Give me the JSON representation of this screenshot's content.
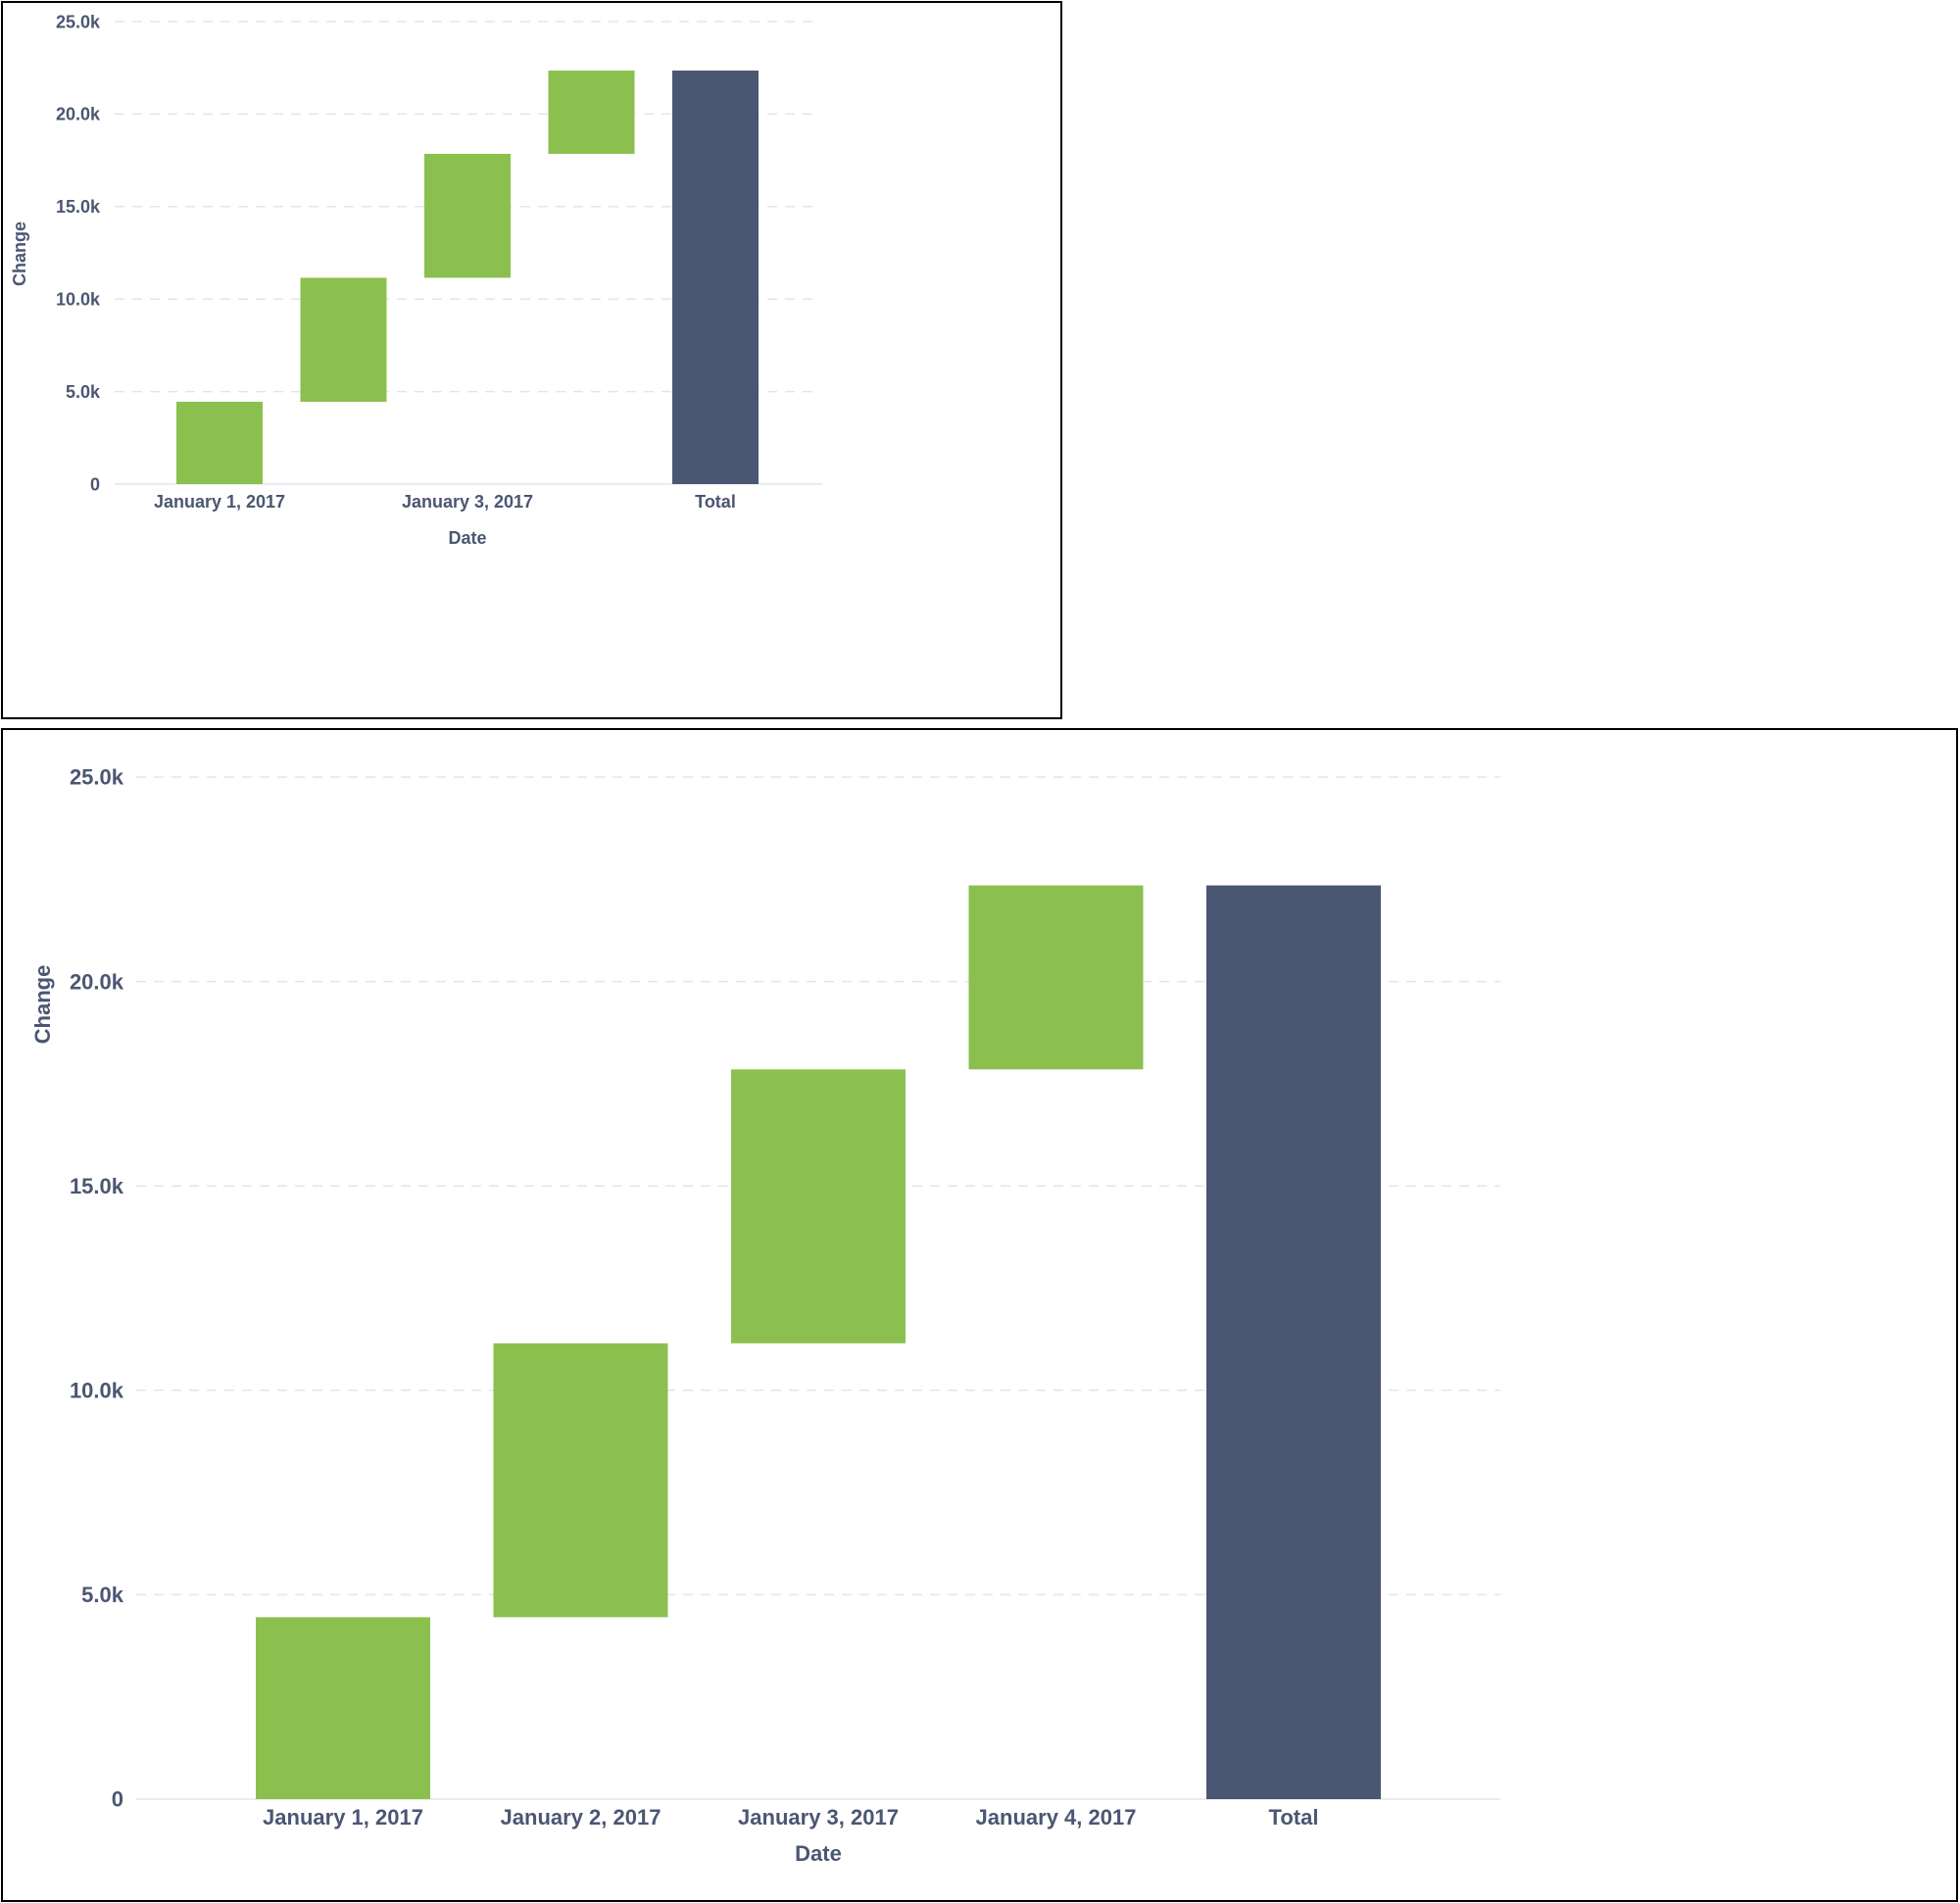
{
  "chart_data": [
    {
      "type": "bar",
      "variant": "waterfall",
      "xlabel": "Date",
      "ylabel": "Change",
      "ylim": [
        0,
        25000
      ],
      "yticks": [
        "0",
        "5.0k",
        "10.0k",
        "15.0k",
        "20.0k",
        "25.0k"
      ],
      "ytick_values": [
        0,
        5000,
        10000,
        15000,
        20000,
        25000
      ],
      "grid": true,
      "categories": [
        "January 1, 2017",
        "January 2, 2017",
        "January 3, 2017",
        "January 4, 2017",
        "Total"
      ],
      "shown_x_tick_labels": [
        "January 1, 2017",
        "January 3, 2017",
        "Total"
      ],
      "values": [
        4450,
        6700,
        6700,
        4500,
        22350
      ],
      "colors": {
        "increase": "#8bc04f",
        "total": "#4b5672"
      }
    },
    {
      "type": "bar",
      "variant": "waterfall",
      "xlabel": "Date",
      "ylabel": "Change",
      "ylim": [
        0,
        25000
      ],
      "yticks": [
        "0",
        "5.0k",
        "10.0k",
        "15.0k",
        "20.0k",
        "25.0k"
      ],
      "ytick_values": [
        0,
        5000,
        10000,
        15000,
        20000,
        25000
      ],
      "grid": true,
      "categories": [
        "January 1, 2017",
        "January 2, 2017",
        "January 3, 2017",
        "January 4, 2017",
        "Total"
      ],
      "shown_x_tick_labels": [
        "January 1, 2017",
        "January 2, 2017",
        "January 3, 2017",
        "January 4, 2017",
        "Total"
      ],
      "values": [
        4450,
        6700,
        6700,
        4500,
        22350
      ],
      "colors": {
        "increase": "#8bc04f",
        "total": "#4b5672"
      }
    }
  ]
}
